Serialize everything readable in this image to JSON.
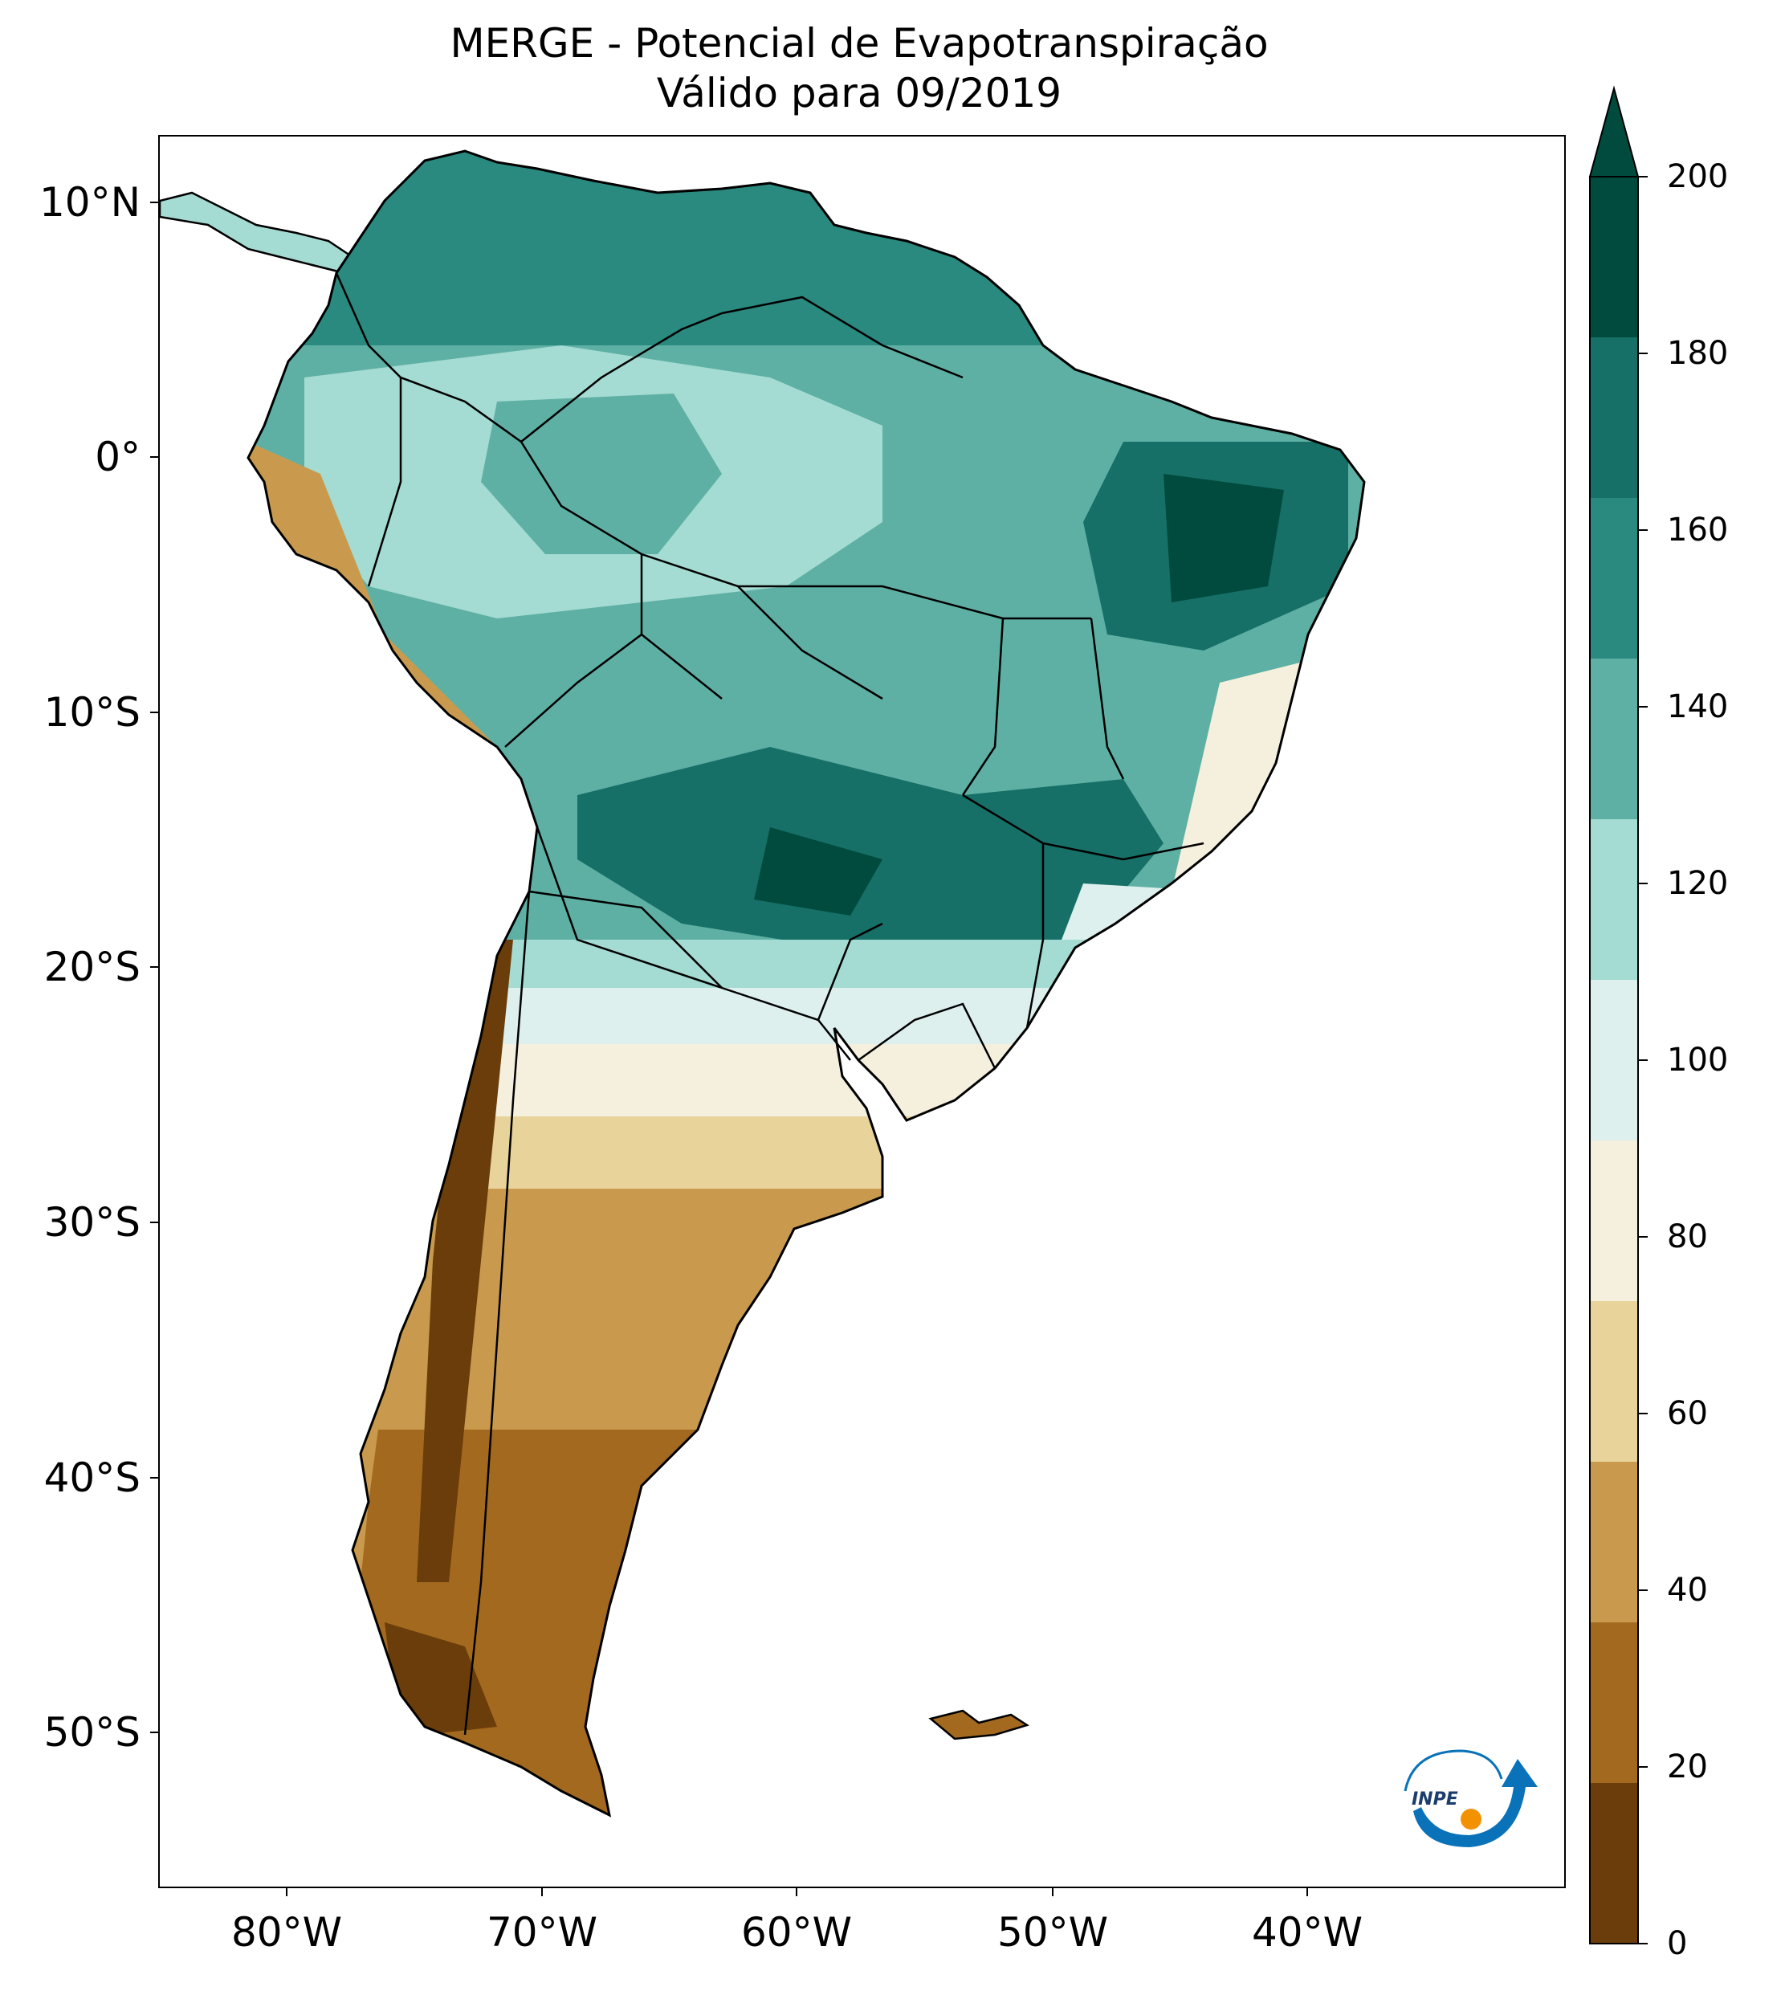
{
  "title": {
    "line1": "MERGE - Potencial de Evapotranspiração",
    "line2": "Válido para 09/2019"
  },
  "axes": {
    "lat_labels": [
      "10°N",
      "0°",
      "10°S",
      "20°S",
      "30°S",
      "40°S",
      "50°S"
    ],
    "lon_labels": [
      "80°W",
      "70°W",
      "60°W",
      "50°W",
      "40°W"
    ]
  },
  "map_data": {
    "variable": "Potencial de Evapotranspiração",
    "region": "South America",
    "lon_range": [
      -85,
      -30
    ],
    "lat_range": [
      -56,
      13
    ]
  },
  "colorbar": {
    "ticks": [
      "0",
      "20",
      "40",
      "60",
      "80",
      "100",
      "120",
      "140",
      "160",
      "180",
      "200"
    ],
    "colors": [
      "#6b3d0a",
      "#a36a1f",
      "#c99a4e",
      "#e8d39b",
      "#f5efde",
      "#ddf0ee",
      "#a4dbd2",
      "#5fb0a4",
      "#2a8a80",
      "#167067",
      "#004b3d"
    ],
    "extend": "max"
  },
  "logo": {
    "text": "INPE"
  }
}
